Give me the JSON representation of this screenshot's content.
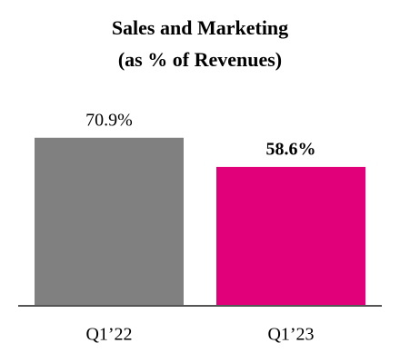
{
  "chart_data": {
    "type": "bar",
    "title": "Sales and Marketing",
    "subtitle": "(as % of Revenues)",
    "categories": [
      "Q1’22",
      "Q1’23"
    ],
    "values": [
      70.9,
      58.6
    ],
    "value_labels": [
      "70.9%",
      "58.6%"
    ],
    "colors": [
      "#808080",
      "#e2007a"
    ],
    "value_label_bold": [
      false,
      true
    ],
    "ylim": [
      0,
      80
    ]
  }
}
